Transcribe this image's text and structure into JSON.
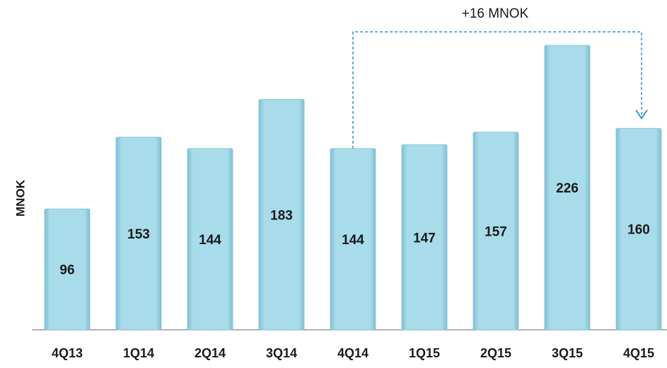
{
  "chart_data": {
    "type": "bar",
    "y_label": "MNOK",
    "annotation": "+16 MNOK",
    "categories": [
      "4Q13",
      "1Q14",
      "2Q14",
      "3Q14",
      "4Q14",
      "1Q15",
      "2Q15",
      "3Q15",
      "4Q15"
    ],
    "values": [
      96,
      153,
      144,
      183,
      144,
      147,
      157,
      226,
      160
    ],
    "color": "#a8dcea"
  }
}
